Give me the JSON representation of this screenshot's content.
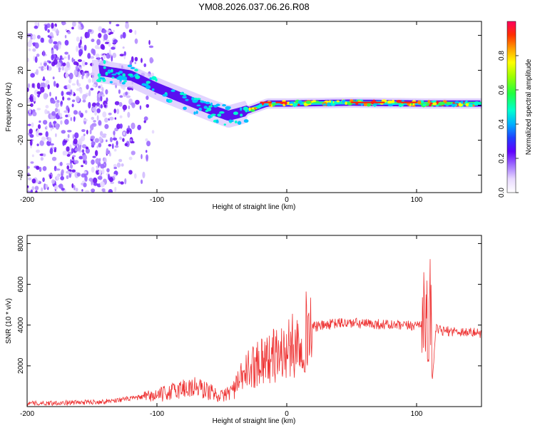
{
  "title": "YM08.2026.037.06.26.R08",
  "chart_data": [
    {
      "type": "heatmap",
      "xlabel": "Height of straight line (km)",
      "ylabel": "Frequency (Hz)",
      "xlim": [
        -200,
        150
      ],
      "ylim": [
        -50,
        48
      ],
      "xticks": [
        -200,
        -100,
        0,
        100
      ],
      "xtick_labels": [
        "-200",
        "-100",
        "0",
        "100"
      ],
      "yticks": [
        -40,
        -20,
        0,
        20,
        40
      ],
      "ytick_labels": [
        "-40",
        "-20",
        "0",
        "20",
        "40"
      ],
      "colorbar": {
        "label": "Normalized spectral amplitude",
        "range": [
          0,
          1
        ],
        "ticks": [
          0.0,
          0.2,
          0.4,
          0.6,
          0.8
        ],
        "tick_labels": [
          "0.0",
          "0.2",
          "0.4",
          "0.6",
          "0.8"
        ]
      },
      "ridge": [
        {
          "x": -145,
          "f": 20
        },
        {
          "x": -120,
          "f": 17
        },
        {
          "x": -100,
          "f": 10
        },
        {
          "x": -80,
          "f": 4
        },
        {
          "x": -60,
          "f": -2
        },
        {
          "x": -45,
          "f": -6
        },
        {
          "x": -30,
          "f": -3
        },
        {
          "x": -15,
          "f": 1
        },
        {
          "x": 0,
          "f": 1
        },
        {
          "x": 50,
          "f": 1.5
        },
        {
          "x": 105,
          "f": 1
        },
        {
          "x": 150,
          "f": 1
        }
      ]
    },
    {
      "type": "line",
      "xlabel": "Height of straight line (km)",
      "ylabel": "SNR (10 * v/v)",
      "xlim": [
        -200,
        150
      ],
      "ylim": [
        0,
        8400
      ],
      "xticks": [
        -200,
        -100,
        0,
        100
      ],
      "xtick_labels": [
        "-200",
        "-100",
        "0",
        "100"
      ],
      "yticks": [
        2000,
        4000,
        6000,
        8000
      ],
      "ytick_labels": [
        "2000",
        "4000",
        "6000",
        "8000"
      ],
      "color": "#ee3333",
      "series": [
        {
          "name": "SNR",
          "x": [
            -200,
            -180,
            -160,
            -140,
            -120,
            -100,
            -90,
            -80,
            -70,
            -60,
            -50,
            -40,
            -35,
            -30,
            -25,
            -20,
            -15,
            -10,
            -5,
            0,
            5,
            10,
            15,
            20,
            30,
            40,
            50,
            60,
            70,
            80,
            90,
            100,
            105,
            108,
            110,
            111,
            112,
            115,
            120,
            130,
            140,
            150
          ],
          "y": [
            150,
            180,
            200,
            250,
            400,
            550,
            700,
            900,
            950,
            750,
            500,
            900,
            1400,
            1800,
            2000,
            2400,
            2300,
            2500,
            2600,
            2700,
            3000,
            3200,
            3700,
            3900,
            4000,
            4100,
            4100,
            4050,
            4050,
            4000,
            3950,
            4000,
            4200,
            4600,
            3200,
            7500,
            1200,
            3800,
            3700,
            3700,
            3650,
            3600
          ]
        }
      ]
    }
  ]
}
